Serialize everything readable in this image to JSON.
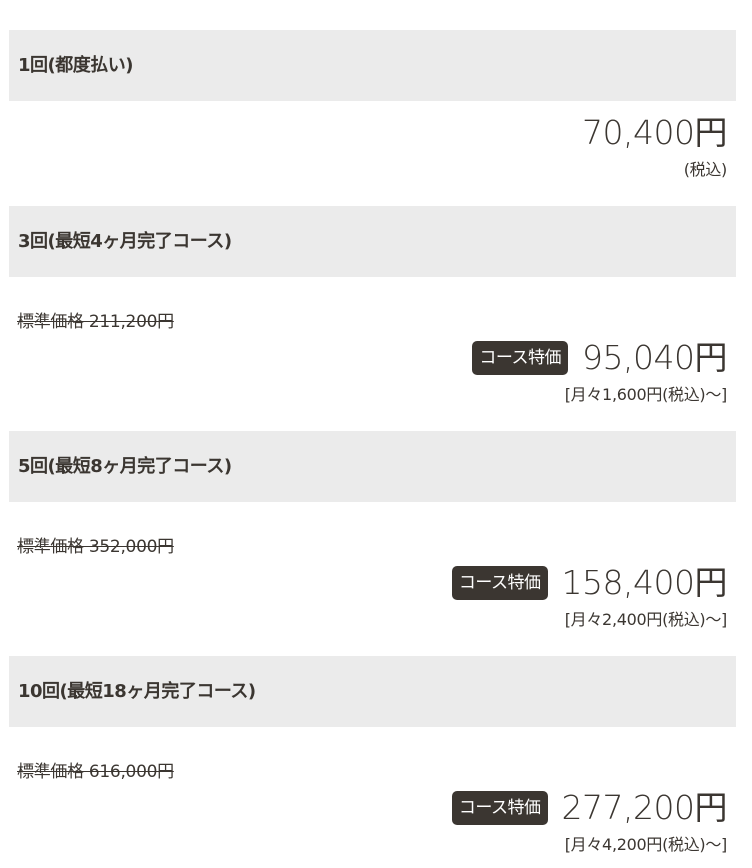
{
  "plans": [
    {
      "title": "1回(都度払い)",
      "price": "70,400円",
      "tax_note": "(税込)"
    },
    {
      "title": "3回(最短4ヶ月完了コース)",
      "standard": "標準価格 211,200円",
      "badge": "コース特価",
      "price": "95,040円",
      "monthly": "[月々1,600円(税込)～]"
    },
    {
      "title": "5回(最短8ヶ月完了コース)",
      "standard": "標準価格 352,000円",
      "badge": "コース特価",
      "price": "158,400円",
      "monthly": "[月々2,400円(税込)～]"
    },
    {
      "title": "10回(最短18ヶ月完了コース)",
      "standard": "標準価格 616,000円",
      "badge": "コース特価",
      "price": "277,200円",
      "monthly": "[月々4,200円(税込)～]"
    }
  ]
}
